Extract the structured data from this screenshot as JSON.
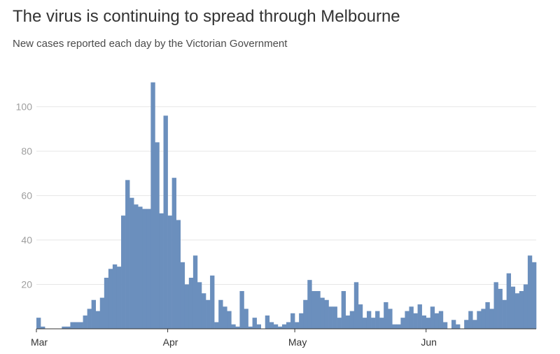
{
  "chart_data": {
    "type": "bar",
    "title": "The virus is continuing to spread through Melbourne",
    "subtitle": "New cases reported each day by the Victorian Government",
    "color": "#6b8fbd",
    "grid": true,
    "ylim": [
      0,
      115
    ],
    "yticks": [
      20,
      40,
      60,
      80,
      100
    ],
    "xticks": [
      {
        "label": "Mar",
        "index": 0
      },
      {
        "label": "Apr",
        "index": 31
      },
      {
        "label": "May",
        "index": 61
      },
      {
        "label": "Jun",
        "index": 92
      }
    ],
    "values": [
      5,
      1,
      0,
      0,
      0,
      0,
      1,
      1,
      3,
      3,
      3,
      6,
      9,
      13,
      8,
      14,
      23,
      27,
      29,
      28,
      51,
      67,
      59,
      56,
      55,
      54,
      54,
      111,
      84,
      52,
      96,
      51,
      68,
      49,
      30,
      20,
      23,
      33,
      21,
      16,
      13,
      24,
      3,
      13,
      10,
      8,
      2,
      1,
      17,
      9,
      1,
      5,
      2,
      0,
      6,
      3,
      2,
      1,
      2,
      3,
      7,
      3,
      7,
      13,
      22,
      17,
      17,
      14,
      13,
      10,
      10,
      5,
      17,
      6,
      8,
      21,
      11,
      5,
      8,
      5,
      8,
      5,
      12,
      9,
      2,
      2,
      5,
      8,
      10,
      7,
      11,
      6,
      5,
      10,
      7,
      8,
      3,
      0,
      4,
      2,
      0,
      4,
      8,
      4,
      8,
      9,
      12,
      9,
      21,
      18,
      13,
      25,
      19,
      16,
      17,
      20,
      33,
      30
    ]
  }
}
